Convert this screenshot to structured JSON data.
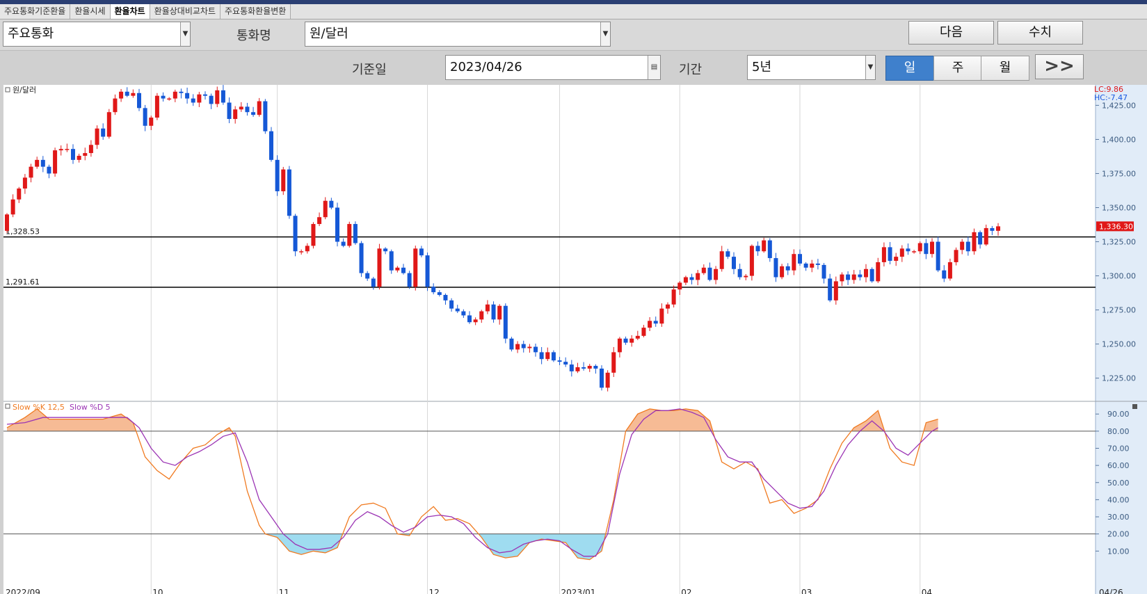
{
  "tabs": [
    "주요통화기준환율",
    "환율시세",
    "환율차트",
    "환율상대비교차트",
    "주요통화환율변환"
  ],
  "active_tab": 2,
  "currency_group": "주요통화",
  "currency_label": "통화명",
  "currency_name": "원/달러",
  "next_button": "다음",
  "values_button": "수치",
  "date_label": "기준일",
  "date_value": "2023/04/26",
  "period_label": "기간",
  "period_value": "5년",
  "interval_buttons": [
    "일",
    "주",
    "월"
  ],
  "interval_selected": 0,
  "more_button": ">>",
  "chart_data": [
    {
      "type": "candlestick",
      "title": "원/달러",
      "lc_label": "LC:9.86",
      "hc_label": "HC:-7.47",
      "y_ticks": [
        "1,425.00",
        "1,400.00",
        "1,375.00",
        "1,350.00",
        "1,325.00",
        "1,300.00",
        "1,275.00",
        "1,250.00",
        "1,225.00"
      ],
      "y_range": [
        1208,
        1440
      ],
      "last_value": 1336.3,
      "last_value_label": "1,336.30",
      "reference_lines": [
        {
          "value": 1328.53,
          "label": "1,328.53"
        },
        {
          "value": 1291.61,
          "label": "1,291.61"
        }
      ],
      "x_labels": [
        "2022/09",
        "10",
        "11",
        "12",
        "2023/01",
        "02",
        "03",
        "04",
        "04/26"
      ],
      "close": [
        1345,
        1356,
        1364,
        1372,
        1380,
        1385,
        1380,
        1375,
        1392,
        1393,
        1393,
        1385,
        1388,
        1390,
        1396,
        1408,
        1402,
        1420,
        1430,
        1435,
        1432,
        1434,
        1423,
        1410,
        1416,
        1432,
        1430,
        1430,
        1435,
        1434,
        1430,
        1427,
        1433,
        1432,
        1426,
        1436,
        1427,
        1415,
        1422,
        1424,
        1420,
        1418,
        1428,
        1406,
        1385,
        1362,
        1378,
        1344,
        1318,
        1318,
        1322,
        1338,
        1343,
        1355,
        1350,
        1325,
        1322,
        1338,
        1324,
        1302,
        1298,
        1292,
        1320,
        1318,
        1304,
        1306,
        1302,
        1292,
        1320,
        1315,
        1292,
        1288,
        1286,
        1282,
        1276,
        1274,
        1271,
        1266,
        1268,
        1274,
        1279,
        1268,
        1278,
        1254,
        1246,
        1250,
        1247,
        1248,
        1244,
        1239,
        1244,
        1238,
        1237,
        1235,
        1230,
        1233,
        1232,
        1234,
        1232,
        1218,
        1229,
        1244,
        1254,
        1251,
        1254,
        1256,
        1262,
        1267,
        1265,
        1276,
        1279,
        1290,
        1295,
        1299,
        1297,
        1302,
        1306,
        1297,
        1305,
        1318,
        1314,
        1305,
        1299,
        1300,
        1322,
        1318,
        1326,
        1313,
        1299,
        1307,
        1304,
        1316,
        1309,
        1306,
        1309,
        1308,
        1298,
        1282,
        1296,
        1301,
        1297,
        1301,
        1299,
        1305,
        1296,
        1310,
        1321,
        1311,
        1314,
        1320,
        1318,
        1318,
        1324,
        1316,
        1325,
        1304,
        1298,
        1310,
        1319,
        1325,
        1318,
        1332,
        1323,
        1335,
        1333,
        1336.3
      ]
    },
    {
      "type": "line",
      "title": "Slow %K 12,5  Slow %D 5",
      "series": [
        {
          "name": "Slow %K 12,5",
          "color": "#f07a20"
        },
        {
          "name": "Slow %D 5",
          "color": "#9b34b4"
        }
      ],
      "y_ticks": [
        "90.00",
        "80.00",
        "70.00",
        "60.00",
        "50.00",
        "40.00",
        "30.00",
        "20.00",
        "10.00"
      ],
      "y_range": [
        2,
        97
      ],
      "upper_line": 80,
      "lower_line": 20,
      "k_points": [
        [
          0,
          82
        ],
        [
          3,
          88
        ],
        [
          5,
          93
        ],
        [
          7,
          87
        ],
        [
          10,
          87
        ],
        [
          13,
          87
        ],
        [
          16,
          87
        ],
        [
          19,
          90
        ],
        [
          21,
          85
        ],
        [
          23,
          65
        ],
        [
          25,
          57
        ],
        [
          27,
          52
        ],
        [
          29,
          62
        ],
        [
          31,
          70
        ],
        [
          33,
          72
        ],
        [
          35,
          78
        ],
        [
          37,
          82
        ],
        [
          38,
          77
        ],
        [
          40,
          45
        ],
        [
          42,
          25
        ],
        [
          43,
          20
        ],
        [
          45,
          18
        ],
        [
          47,
          10
        ],
        [
          49,
          8
        ],
        [
          51,
          10
        ],
        [
          53,
          9
        ],
        [
          55,
          12
        ],
        [
          57,
          30
        ],
        [
          59,
          37
        ],
        [
          61,
          38
        ],
        [
          63,
          35
        ],
        [
          65,
          20
        ],
        [
          67,
          19
        ],
        [
          69,
          30
        ],
        [
          71,
          36
        ],
        [
          73,
          28
        ],
        [
          75,
          29
        ],
        [
          77,
          26
        ],
        [
          79,
          18
        ],
        [
          81,
          8
        ],
        [
          83,
          6
        ],
        [
          85,
          7
        ],
        [
          87,
          15
        ],
        [
          89,
          17
        ],
        [
          91,
          16
        ],
        [
          93,
          15
        ],
        [
          95,
          6
        ],
        [
          97,
          5
        ],
        [
          99,
          10
        ],
        [
          101,
          40
        ],
        [
          103,
          80
        ],
        [
          105,
          90
        ],
        [
          107,
          93
        ],
        [
          109,
          92
        ],
        [
          111,
          92
        ],
        [
          113,
          93
        ],
        [
          115,
          92
        ],
        [
          117,
          86
        ],
        [
          119,
          62
        ],
        [
          121,
          58
        ],
        [
          123,
          62
        ],
        [
          125,
          58
        ],
        [
          127,
          38
        ],
        [
          129,
          40
        ],
        [
          131,
          32
        ],
        [
          133,
          35
        ],
        [
          135,
          40
        ],
        [
          137,
          58
        ],
        [
          139,
          73
        ],
        [
          141,
          82
        ],
        [
          143,
          86
        ],
        [
          145,
          92
        ],
        [
          147,
          70
        ],
        [
          149,
          62
        ],
        [
          151,
          60
        ],
        [
          153,
          85
        ],
        [
          155,
          87
        ]
      ],
      "d_points": [
        [
          0,
          84
        ],
        [
          3,
          85
        ],
        [
          6,
          88
        ],
        [
          10,
          88
        ],
        [
          14,
          88
        ],
        [
          17,
          88
        ],
        [
          20,
          88
        ],
        [
          22,
          82
        ],
        [
          24,
          70
        ],
        [
          26,
          62
        ],
        [
          28,
          60
        ],
        [
          30,
          65
        ],
        [
          32,
          68
        ],
        [
          34,
          72
        ],
        [
          36,
          77
        ],
        [
          38,
          79
        ],
        [
          40,
          62
        ],
        [
          42,
          40
        ],
        [
          44,
          30
        ],
        [
          46,
          20
        ],
        [
          48,
          14
        ],
        [
          50,
          11
        ],
        [
          52,
          11
        ],
        [
          54,
          12
        ],
        [
          56,
          18
        ],
        [
          58,
          28
        ],
        [
          60,
          33
        ],
        [
          62,
          30
        ],
        [
          64,
          25
        ],
        [
          66,
          21
        ],
        [
          68,
          24
        ],
        [
          70,
          30
        ],
        [
          72,
          31
        ],
        [
          74,
          30
        ],
        [
          76,
          26
        ],
        [
          78,
          18
        ],
        [
          80,
          12
        ],
        [
          82,
          9
        ],
        [
          84,
          10
        ],
        [
          86,
          14
        ],
        [
          88,
          16
        ],
        [
          90,
          17
        ],
        [
          92,
          16
        ],
        [
          94,
          11
        ],
        [
          96,
          7
        ],
        [
          98,
          7
        ],
        [
          100,
          20
        ],
        [
          102,
          55
        ],
        [
          104,
          78
        ],
        [
          106,
          87
        ],
        [
          108,
          92
        ],
        [
          110,
          92
        ],
        [
          112,
          93
        ],
        [
          114,
          91
        ],
        [
          116,
          88
        ],
        [
          118,
          75
        ],
        [
          120,
          65
        ],
        [
          122,
          62
        ],
        [
          124,
          62
        ],
        [
          126,
          52
        ],
        [
          128,
          45
        ],
        [
          130,
          38
        ],
        [
          132,
          35
        ],
        [
          134,
          36
        ],
        [
          136,
          45
        ],
        [
          138,
          60
        ],
        [
          140,
          72
        ],
        [
          142,
          80
        ],
        [
          144,
          86
        ],
        [
          146,
          80
        ],
        [
          148,
          70
        ],
        [
          150,
          66
        ],
        [
          152,
          73
        ],
        [
          154,
          80
        ],
        [
          155,
          82
        ]
      ]
    }
  ]
}
